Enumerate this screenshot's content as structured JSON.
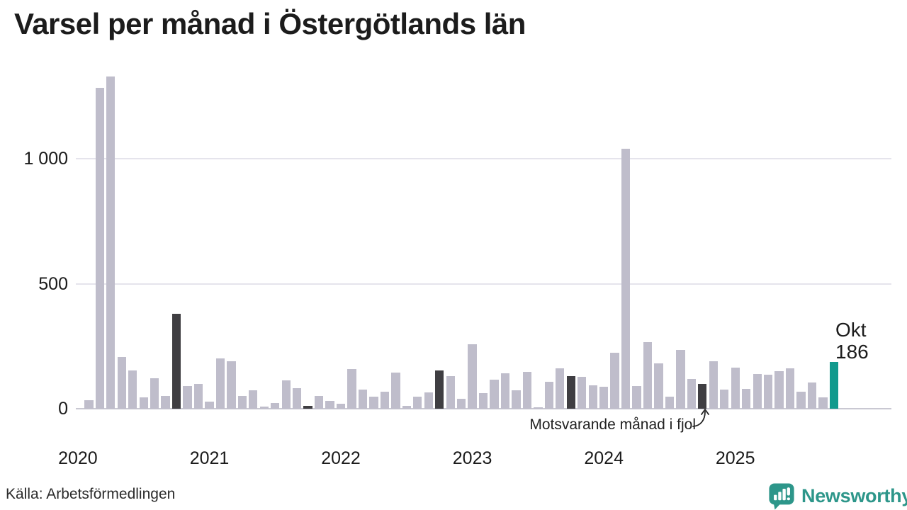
{
  "title": "Varsel per månad i Östergötlands län",
  "source": "Källa: Arbetsförmedlingen",
  "annotation": {
    "text": "Motsvarande månad i fjol"
  },
  "current_label": {
    "month": "Okt",
    "value": "186"
  },
  "logo": {
    "text": "Newsworthy",
    "icon": "newsworthy-speech-bubble-chart-icon"
  },
  "colors": {
    "bar": "#bfbdcb",
    "bar_dark": "#3f3e42",
    "bar_current": "#119a8d",
    "accent_teal": "#2d968a",
    "gridline": "#e5e4ec",
    "axis": "#c9c8d2",
    "text": "#1a1a1a"
  },
  "chart_data": {
    "type": "bar",
    "title": "Varsel per månad i Östergötlands län",
    "xlabel": "",
    "ylabel": "",
    "ylim": [
      0,
      1380
    ],
    "grid": "horizontal",
    "legend": "none",
    "y_ticks": [
      "0",
      "500",
      "1 000"
    ],
    "y_tick_values": [
      0,
      500,
      1000
    ],
    "x_year_labels": [
      "2020",
      "2021",
      "2022",
      "2023",
      "2024",
      "2025"
    ],
    "highlight_dark_meaning": "Motsvarande månad i fjol (oktober varje år)",
    "highlight_current": "Okt 2025 = 186",
    "points": [
      {
        "m": "2020-02",
        "v": 33
      },
      {
        "m": "2020-03",
        "v": 1285
      },
      {
        "m": "2020-04",
        "v": 1330
      },
      {
        "m": "2020-05",
        "v": 207
      },
      {
        "m": "2020-06",
        "v": 152
      },
      {
        "m": "2020-07",
        "v": 45
      },
      {
        "m": "2020-08",
        "v": 122
      },
      {
        "m": "2020-09",
        "v": 52
      },
      {
        "m": "2020-10",
        "v": 380,
        "k": "fjol"
      },
      {
        "m": "2020-11",
        "v": 90
      },
      {
        "m": "2020-12",
        "v": 100
      },
      {
        "m": "2021-01",
        "v": 28
      },
      {
        "m": "2021-02",
        "v": 202
      },
      {
        "m": "2021-03",
        "v": 189
      },
      {
        "m": "2021-04",
        "v": 51
      },
      {
        "m": "2021-05",
        "v": 75
      },
      {
        "m": "2021-06",
        "v": 8
      },
      {
        "m": "2021-07",
        "v": 23
      },
      {
        "m": "2021-08",
        "v": 113
      },
      {
        "m": "2021-09",
        "v": 82
      },
      {
        "m": "2021-10",
        "v": 11,
        "k": "fjol"
      },
      {
        "m": "2021-11",
        "v": 52
      },
      {
        "m": "2021-12",
        "v": 31
      },
      {
        "m": "2022-01",
        "v": 21
      },
      {
        "m": "2022-02",
        "v": 158
      },
      {
        "m": "2022-03",
        "v": 78
      },
      {
        "m": "2022-04",
        "v": 47
      },
      {
        "m": "2022-05",
        "v": 68
      },
      {
        "m": "2022-06",
        "v": 145
      },
      {
        "m": "2022-07",
        "v": 11
      },
      {
        "m": "2022-08",
        "v": 49
      },
      {
        "m": "2022-09",
        "v": 64
      },
      {
        "m": "2022-10",
        "v": 153,
        "k": "fjol"
      },
      {
        "m": "2022-11",
        "v": 130
      },
      {
        "m": "2022-12",
        "v": 41
      },
      {
        "m": "2023-01",
        "v": 257
      },
      {
        "m": "2023-02",
        "v": 63
      },
      {
        "m": "2023-03",
        "v": 116
      },
      {
        "m": "2023-04",
        "v": 142
      },
      {
        "m": "2023-05",
        "v": 74
      },
      {
        "m": "2023-06",
        "v": 149
      },
      {
        "m": "2023-07",
        "v": 7
      },
      {
        "m": "2023-08",
        "v": 107
      },
      {
        "m": "2023-09",
        "v": 161
      },
      {
        "m": "2023-10",
        "v": 130,
        "k": "fjol"
      },
      {
        "m": "2023-11",
        "v": 128
      },
      {
        "m": "2023-12",
        "v": 94
      },
      {
        "m": "2024-01",
        "v": 88
      },
      {
        "m": "2024-02",
        "v": 225
      },
      {
        "m": "2024-03",
        "v": 1040
      },
      {
        "m": "2024-04",
        "v": 92
      },
      {
        "m": "2024-05",
        "v": 268
      },
      {
        "m": "2024-06",
        "v": 182
      },
      {
        "m": "2024-07",
        "v": 47
      },
      {
        "m": "2024-08",
        "v": 236
      },
      {
        "m": "2024-09",
        "v": 120
      },
      {
        "m": "2024-10",
        "v": 99,
        "k": "fjol"
      },
      {
        "m": "2024-11",
        "v": 191
      },
      {
        "m": "2024-12",
        "v": 76
      },
      {
        "m": "2025-01",
        "v": 164
      },
      {
        "m": "2025-02",
        "v": 79
      },
      {
        "m": "2025-03",
        "v": 139
      },
      {
        "m": "2025-04",
        "v": 137
      },
      {
        "m": "2025-05",
        "v": 151
      },
      {
        "m": "2025-06",
        "v": 161
      },
      {
        "m": "2025-07",
        "v": 69
      },
      {
        "m": "2025-08",
        "v": 104
      },
      {
        "m": "2025-09",
        "v": 45
      },
      {
        "m": "2025-10",
        "v": 186,
        "k": "current"
      }
    ]
  }
}
